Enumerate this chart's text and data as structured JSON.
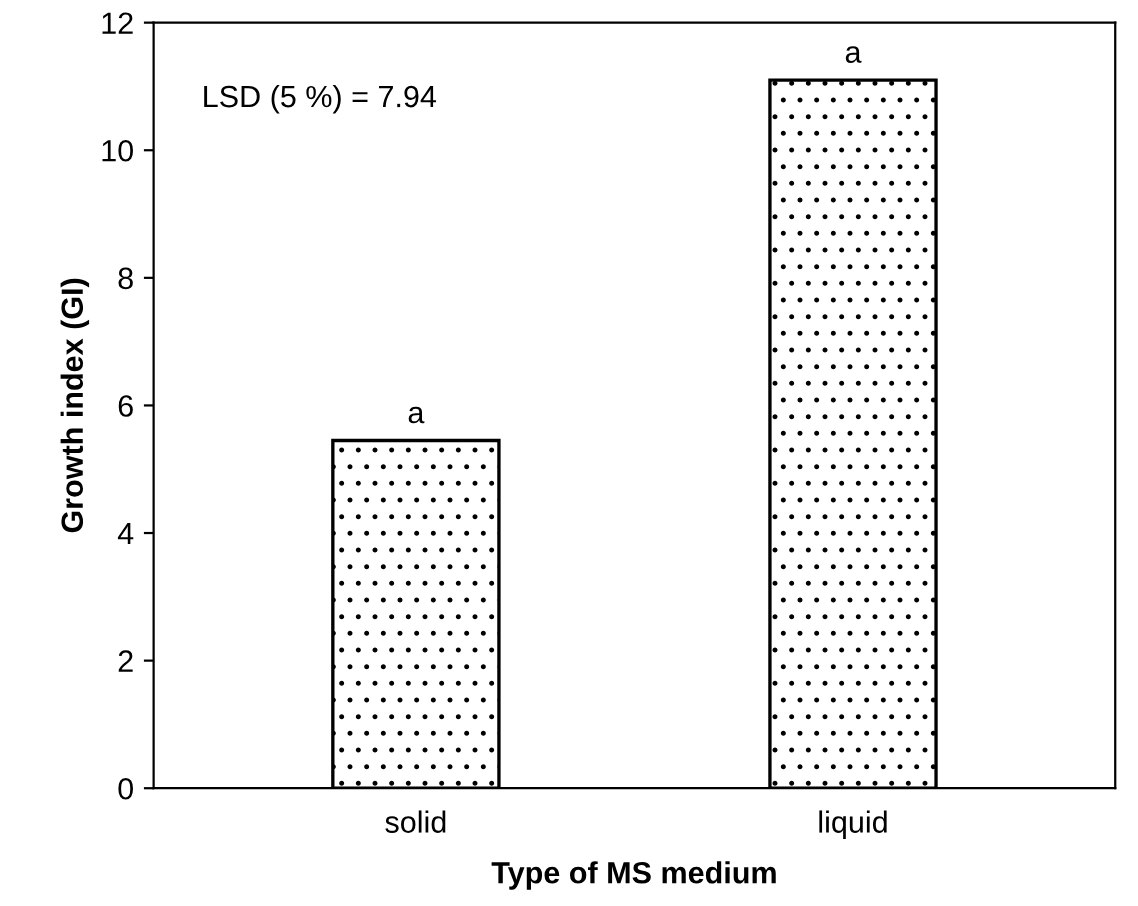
{
  "chart_data": {
    "type": "bar",
    "xlabel": "Type of MS medium",
    "ylabel": "Growth index (GI)",
    "categories": [
      "solid",
      "liquid"
    ],
    "values": [
      5.45,
      11.1
    ],
    "color": "#000000",
    "ylim": [
      0,
      12
    ],
    "yticks": [
      0,
      2,
      4,
      6,
      8,
      10,
      12
    ],
    "grid": false,
    "annotations": [
      "LSD (5 %) = 7.94",
      {
        "text": "a",
        "x": "solid",
        "y": 5.45
      },
      {
        "text": "a",
        "x": "liquid",
        "y": 11.1
      }
    ]
  }
}
